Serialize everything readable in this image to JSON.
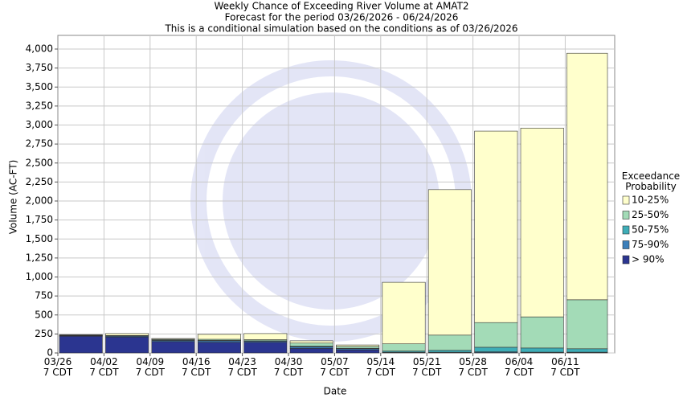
{
  "chart_data": {
    "type": "stacked_bar",
    "title": "Weekly Chance of Exceeding River Volume at AMAT2",
    "subtitle": "Forecast for the period 03/26/2026 - 06/24/2026",
    "note": "This is a conditional simulation based on the conditions as of 03/26/2026",
    "x_label": "Date",
    "y_label": "Volume (AC-FT)",
    "legend_title": "Exceedance\nProbability",
    "categories": [
      "03/26\n7 CDT",
      "04/02\n7 CDT",
      "04/09\n7 CDT",
      "04/16\n7 CDT",
      "04/23\n7 CDT",
      "04/30\n7 CDT",
      "05/07\n7 CDT",
      "05/14\n7 CDT",
      "05/21\n7 CDT",
      "05/28\n7 CDT",
      "06/04\n7 CDT",
      "06/11\n7 CDT"
    ],
    "series": [
      {
        "name": "> 90%",
        "color": "#2b3590",
        "values": [
          220,
          210,
          150,
          140,
          140,
          60,
          40,
          5,
          5,
          5,
          5,
          5
        ]
      },
      {
        "name": "75-90%",
        "color": "#3b7fba",
        "values": [
          5,
          10,
          15,
          20,
          15,
          20,
          15,
          5,
          5,
          10,
          5,
          5
        ]
      },
      {
        "name": "50-75%",
        "color": "#3eadb7",
        "values": [
          5,
          5,
          5,
          5,
          5,
          10,
          5,
          15,
          25,
          60,
          55,
          45
        ]
      },
      {
        "name": "25-50%",
        "color": "#a3dbb7",
        "values": [
          5,
          5,
          10,
          15,
          15,
          40,
          25,
          95,
          200,
          325,
          410,
          645
        ]
      },
      {
        "name": "10-25%",
        "color": "#ffffcc",
        "values": [
          5,
          25,
          10,
          65,
          80,
          30,
          20,
          810,
          1915,
          2520,
          2485,
          3245
        ]
      }
    ],
    "ylim": [
      0,
      4180
    ],
    "yticks": [
      0,
      250,
      500,
      750,
      {
        "value": 1000,
        "label": "1,000"
      },
      {
        "value": 1250,
        "label": "1,250"
      },
      {
        "value": 1500,
        "label": "1,500"
      },
      {
        "value": 1750,
        "label": "1,750"
      },
      {
        "value": 2000,
        "label": "2,000"
      },
      {
        "value": 2250,
        "label": "2,250"
      },
      {
        "value": 2500,
        "label": "2,500"
      },
      {
        "value": 2750,
        "label": "2,750"
      },
      {
        "value": 3000,
        "label": "3,000"
      },
      {
        "value": 3250,
        "label": "3,250"
      },
      {
        "value": 3500,
        "label": "3,500"
      },
      {
        "value": 3750,
        "label": "3,750"
      },
      {
        "value": 4000,
        "label": "4,000"
      }
    ],
    "grid": true
  }
}
